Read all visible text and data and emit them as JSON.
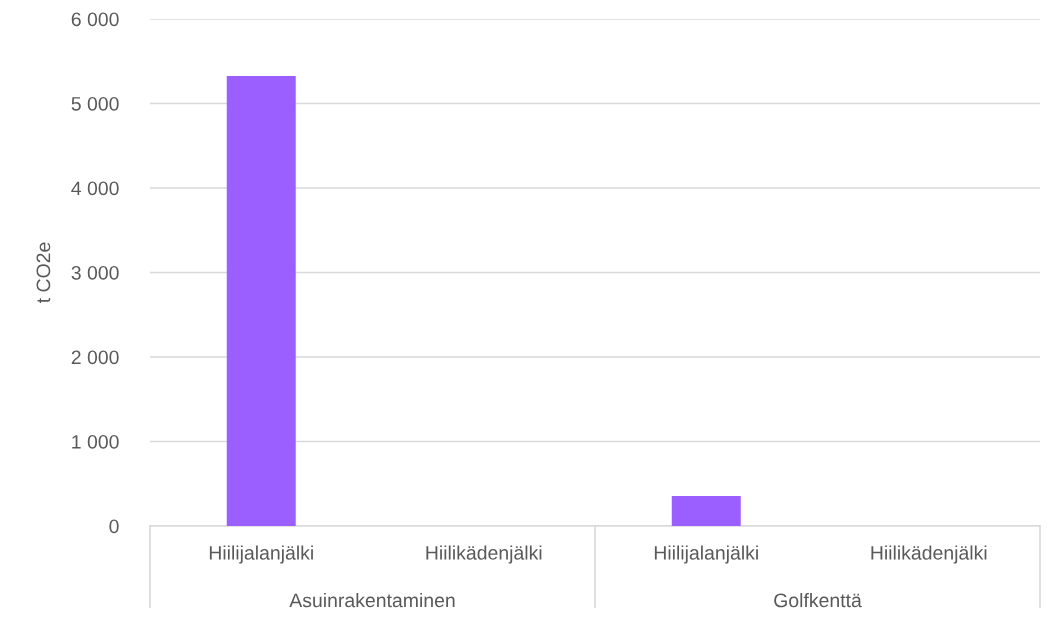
{
  "chart_data": {
    "type": "bar",
    "ylabel": "t CO2e",
    "categories": [
      "Hiilijalanjälki",
      "Hiilikädenjälki",
      "Hiilijalanjälki",
      "Hiilikädenjälki"
    ],
    "values": [
      5325,
      null,
      355,
      null
    ],
    "color": "#9b5fff",
    "ylim": [
      0,
      6000
    ],
    "yticks": [
      {
        "value": 0,
        "label": "0"
      },
      {
        "value": 1000,
        "label": "1 000"
      },
      {
        "value": 2000,
        "label": "2 000"
      },
      {
        "value": 3000,
        "label": "3 000"
      },
      {
        "value": 4000,
        "label": "4 000"
      },
      {
        "value": 5000,
        "label": "5 000"
      },
      {
        "value": 6000,
        "label": "6 000"
      }
    ],
    "annotations": [
      "Asuinrakentaminen",
      "Golfkenttä"
    ],
    "grid": "y",
    "legend": false
  }
}
